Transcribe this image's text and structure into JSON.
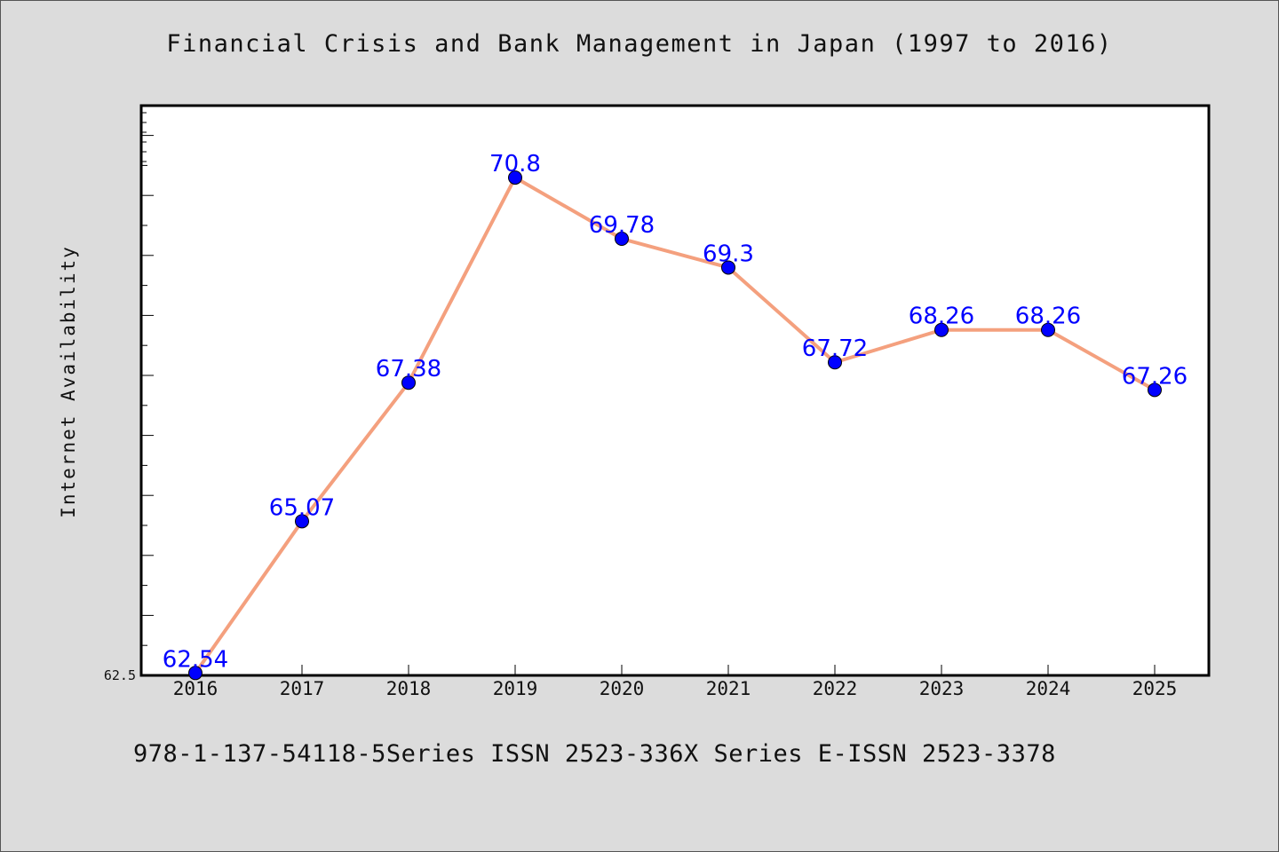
{
  "chart_data": {
    "type": "line",
    "title": "Financial Crisis and Bank Management in Japan (1997 to 2016)",
    "xlabel": "",
    "ylabel": "Internet Availability",
    "categories": [
      "2016",
      "2017",
      "2018",
      "2019",
      "2020",
      "2021",
      "2022",
      "2023",
      "2024",
      "2025"
    ],
    "series": [
      {
        "values": [
          62.54,
          65.07,
          67.38,
          70.8,
          69.78,
          69.3,
          67.72,
          68.26,
          68.26,
          67.26
        ],
        "data_labels": [
          "62.54",
          "65.07",
          "67.38",
          "70.8",
          "69.78",
          "69.3",
          "67.72",
          "68.26",
          "68.26",
          "67.26"
        ]
      }
    ],
    "ylim": [
      62.5,
      72
    ],
    "y_tick_labels": [
      "62.5"
    ],
    "grid": false,
    "legend": "none",
    "colors": {
      "line": "#f4a07e",
      "marker": "#0000ff",
      "data_label": "#0000ff",
      "plot_background": "#ffffff",
      "page_background": "#dcdcdc"
    }
  },
  "footer": {
    "text": "978-1-137-54118-5Series ISSN 2523-336X Series E-ISSN 2523-3378"
  }
}
